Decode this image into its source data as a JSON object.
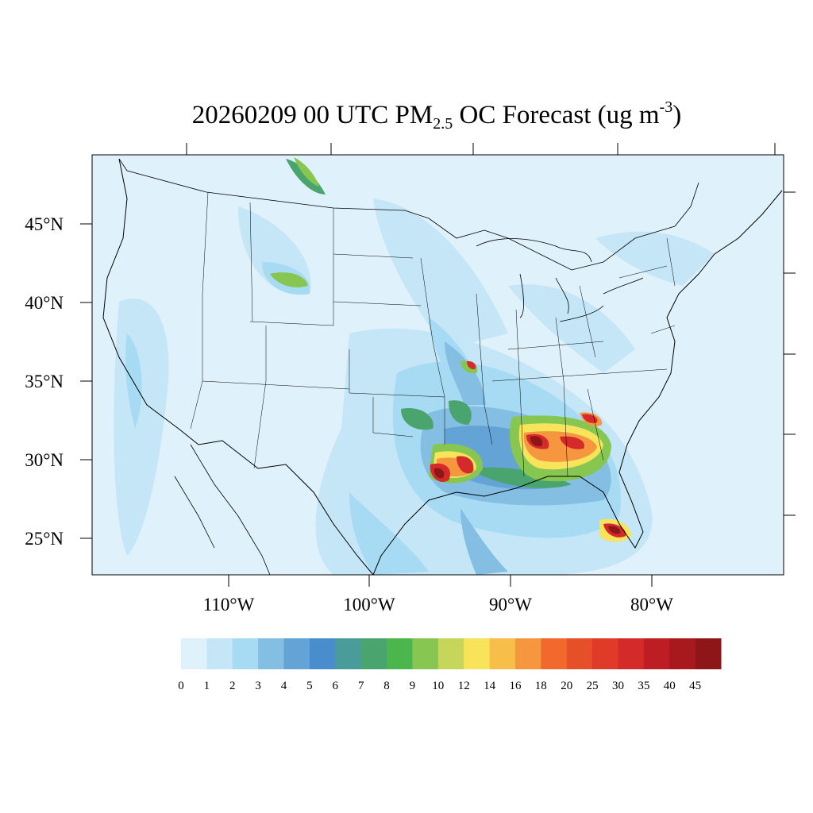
{
  "title": {
    "prefix": "20260209 00 UTC PM",
    "sub": "2.5",
    "middle": " OC Forecast (ug m",
    "sup": "-3",
    "suffix": ")"
  },
  "lat_labels": [
    "45°N",
    "40°N",
    "35°N",
    "30°N",
    "25°N"
  ],
  "lon_labels": [
    "110°W",
    "100°W",
    "90°W",
    "80°W"
  ],
  "colorbar": {
    "labels": [
      "0",
      "1",
      "2",
      "3",
      "4",
      "5",
      "6",
      "7",
      "8",
      "9",
      "10",
      "12",
      "14",
      "16",
      "18",
      "20",
      "25",
      "30",
      "35",
      "40",
      "45"
    ],
    "colors": [
      "#dff1fa",
      "#c4e6f6",
      "#a7dbf3",
      "#84bfe3",
      "#63a3d6",
      "#4a8dcc",
      "#4a9c9a",
      "#4aa46e",
      "#4bb64b",
      "#86c651",
      "#c5d65a",
      "#f7e45a",
      "#f7be4a",
      "#f6963e",
      "#f1692d",
      "#e65029",
      "#e03a29",
      "#d42a2a",
      "#bd1e23",
      "#a8191e",
      "#8e1619"
    ]
  }
}
